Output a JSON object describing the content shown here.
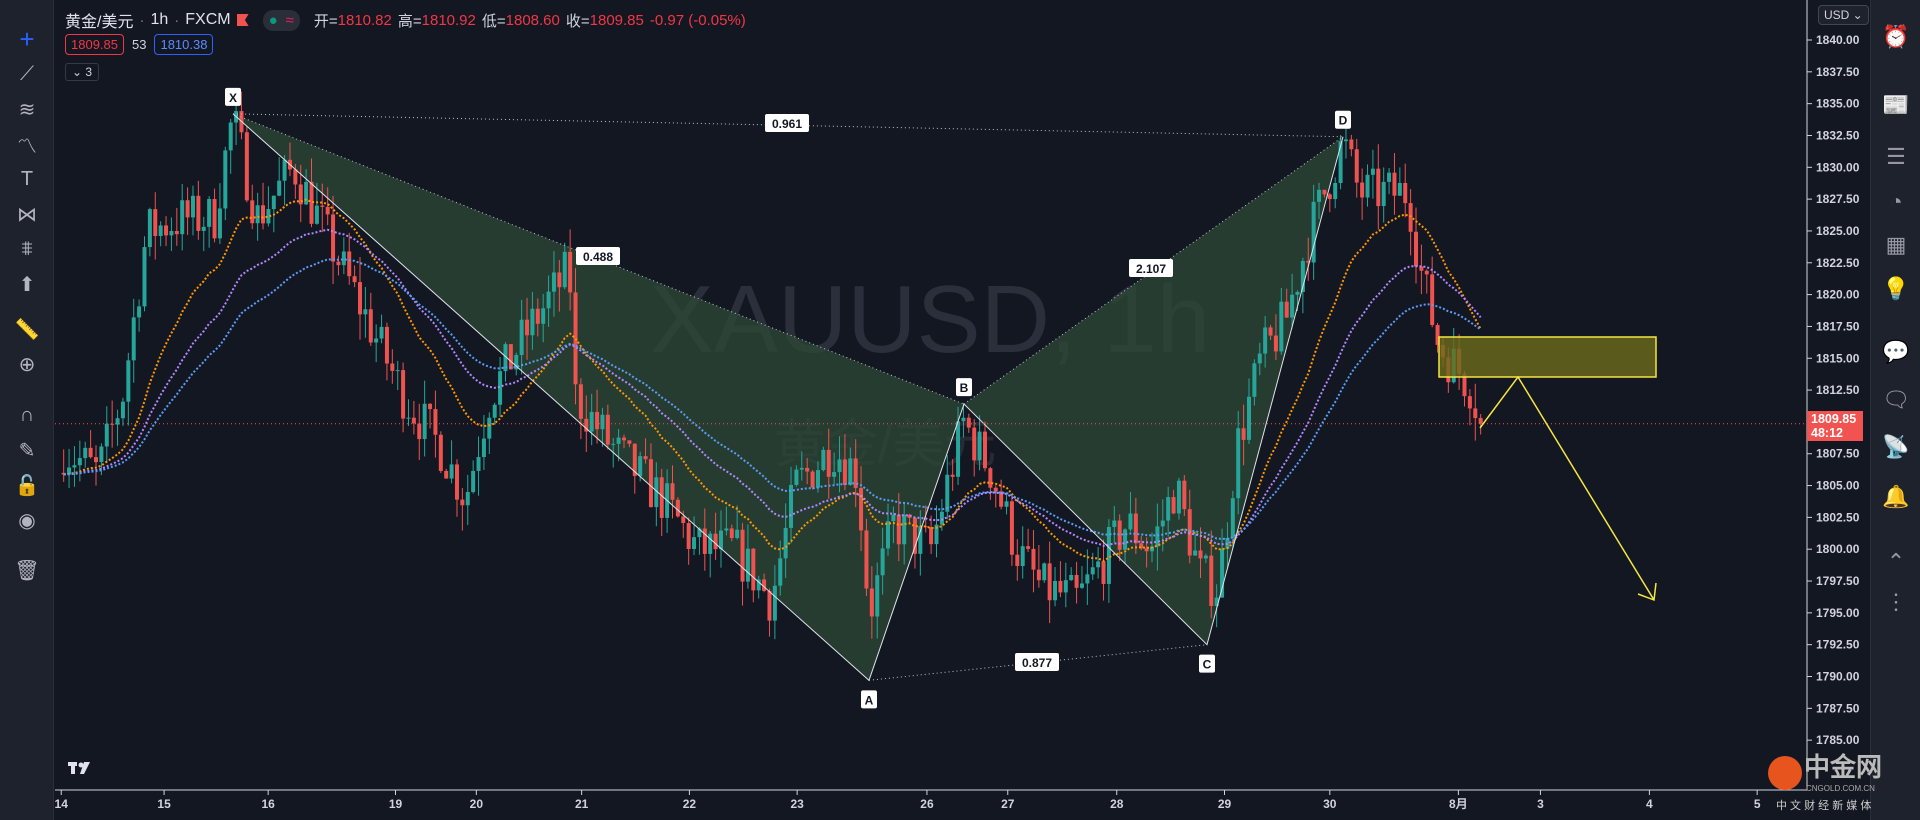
{
  "legend": {
    "symbol": "黄金/美元",
    "interval": "1h",
    "source": "FXCM",
    "open_label": "开=",
    "open": "1810.82",
    "high_label": "高=",
    "high": "1810.92",
    "low_label": "低=",
    "low": "1808.60",
    "close_label": "收=",
    "close": "1809.85",
    "change": "-0.97 (-0.05%)",
    "bid": "1809.85",
    "spread": "53",
    "ask": "1810.38",
    "indicators_toggle": "3"
  },
  "watermark": {
    "line1": "XAUUSD, 1h",
    "line2": "黄金/美元"
  },
  "currency": "USD",
  "price_axis": [
    "1840.00",
    "1837.50",
    "1835.00",
    "1832.50",
    "1830.00",
    "1827.50",
    "1825.00",
    "1822.50",
    "1820.00",
    "1817.50",
    "1815.00",
    "1812.50",
    "1807.50",
    "1805.00",
    "1802.50",
    "1800.00",
    "1797.50",
    "1795.00",
    "1792.50",
    "1790.00",
    "1787.50",
    "1785.00"
  ],
  "current_price": {
    "value": "1809.85",
    "countdown": "48:12"
  },
  "time_axis": [
    "14",
    "15",
    "16",
    "19",
    "20",
    "21",
    "22",
    "23",
    "26",
    "27",
    "28",
    "29",
    "30",
    "8月",
    "3",
    "4",
    "5"
  ],
  "pattern": {
    "points": [
      {
        "label": "X",
        "price": 1834.2
      },
      {
        "label": "A",
        "price": 1789.7
      },
      {
        "label": "B",
        "price": 1811.4
      },
      {
        "label": "C",
        "price": 1792.5
      },
      {
        "label": "D",
        "price": 1832.4
      }
    ],
    "ratios": [
      "0.961",
      "0.488",
      "2.107",
      "0.877"
    ]
  },
  "colors": {
    "up": "#26a69a",
    "down": "#ef5350",
    "pattern_fill": "#2e4a36",
    "ma1": "#ff9800",
    "ma2": "#b388ff",
    "ma3": "#5b9cf6",
    "projection": "#f5e642",
    "bid": "#f23645",
    "ask": "#2962ff"
  },
  "logo": {
    "name": "中金网",
    "domain": "CNGOLD.COM.CN",
    "slogan": "中 文 财 经 新 媒 体"
  },
  "left_toolbar": [
    "crosshair-icon",
    "trend-line-icon",
    "fib-icon",
    "path-icon",
    "text-icon",
    "pattern-icon",
    "measure-icon",
    "arrow-up-icon",
    "ruler-icon",
    "zoom-in-icon",
    "magnet-icon",
    "lock-draw-icon",
    "lock-icon",
    "eye-icon",
    "trash-icon"
  ],
  "right_toolbar": [
    "alarm-clock-icon",
    "news-icon",
    "watchlist-icon",
    "pie-icon",
    "calendar-icon",
    "idea-icon",
    "chat-icon",
    "chat-alt-icon",
    "stream-icon",
    "bell-icon",
    "chevrons-icon",
    "dots-icon"
  ]
}
